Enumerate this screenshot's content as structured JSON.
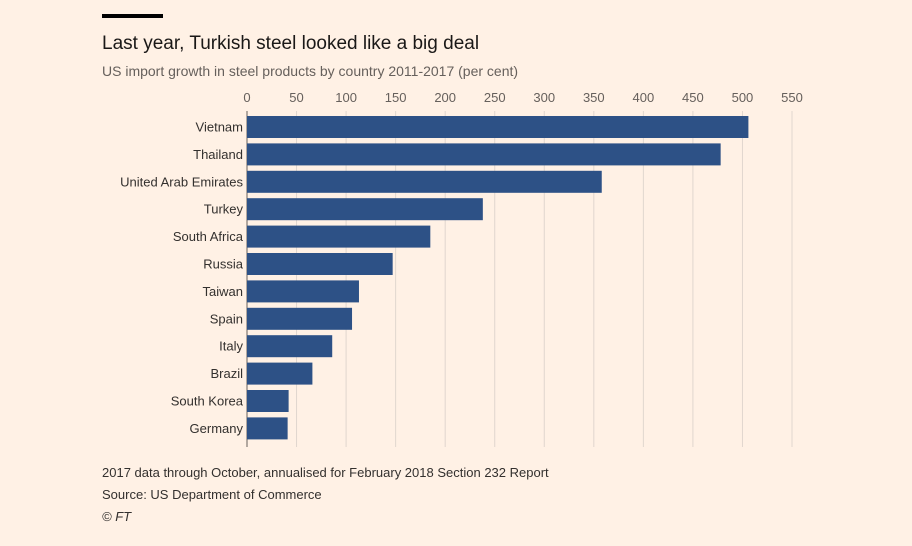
{
  "header": {
    "title": "Last year, Turkish steel looked like a big deal",
    "subtitle": "US import growth in steel products by country 2011-2017 (per cent)"
  },
  "footer": {
    "note": "2017 data through October, annualised for February 2018 Section 232 Report",
    "source": "Source: US Department of Commerce",
    "copyright": "© FT"
  },
  "colors": {
    "background": "#fff1e5",
    "bar": "#2d5186",
    "gridline": "#e0d6ce",
    "zero_line": "#66605c",
    "top_rule": "#000000"
  },
  "chart_data": {
    "type": "bar",
    "orientation": "horizontal",
    "categories": [
      "Vietnam",
      "Thailand",
      "United Arab Emirates",
      "Turkey",
      "South Africa",
      "Russia",
      "Taiwan",
      "Spain",
      "Italy",
      "Brazil",
      "South Korea",
      "Germany"
    ],
    "values": [
      506,
      478,
      358,
      238,
      185,
      147,
      113,
      106,
      86,
      66,
      42,
      41
    ],
    "xlim": [
      0,
      550
    ],
    "xticks": [
      0,
      50,
      100,
      150,
      200,
      250,
      300,
      350,
      400,
      450,
      500,
      550
    ],
    "xaxis_position": "top",
    "grid": true,
    "legend": "none"
  }
}
